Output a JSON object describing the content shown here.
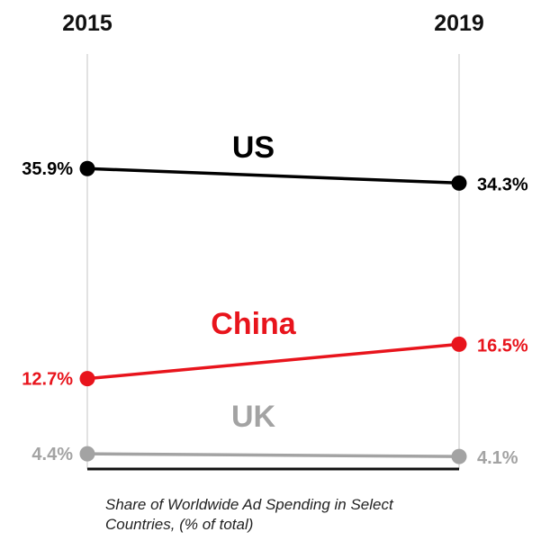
{
  "chart_data": {
    "type": "line",
    "x": [
      "2015",
      "2019"
    ],
    "series": [
      {
        "name": "US",
        "values": [
          35.9,
          34.3
        ],
        "labels": [
          "35.9%",
          "34.3%"
        ],
        "color": "#000000"
      },
      {
        "name": "China",
        "values": [
          12.7,
          16.5
        ],
        "labels": [
          "12.7%",
          "16.5%"
        ],
        "color": "#e8141c"
      },
      {
        "name": "UK",
        "values": [
          4.4,
          4.1
        ],
        "labels": [
          "4.4%",
          "4.1%"
        ],
        "color": "#a3a3a3"
      }
    ],
    "caption_lines": [
      "Share of Worldwide Ad Spending in Select",
      "Countries, (% of total)"
    ],
    "ylim": [
      0,
      45
    ],
    "grid": false,
    "legend": "none"
  }
}
